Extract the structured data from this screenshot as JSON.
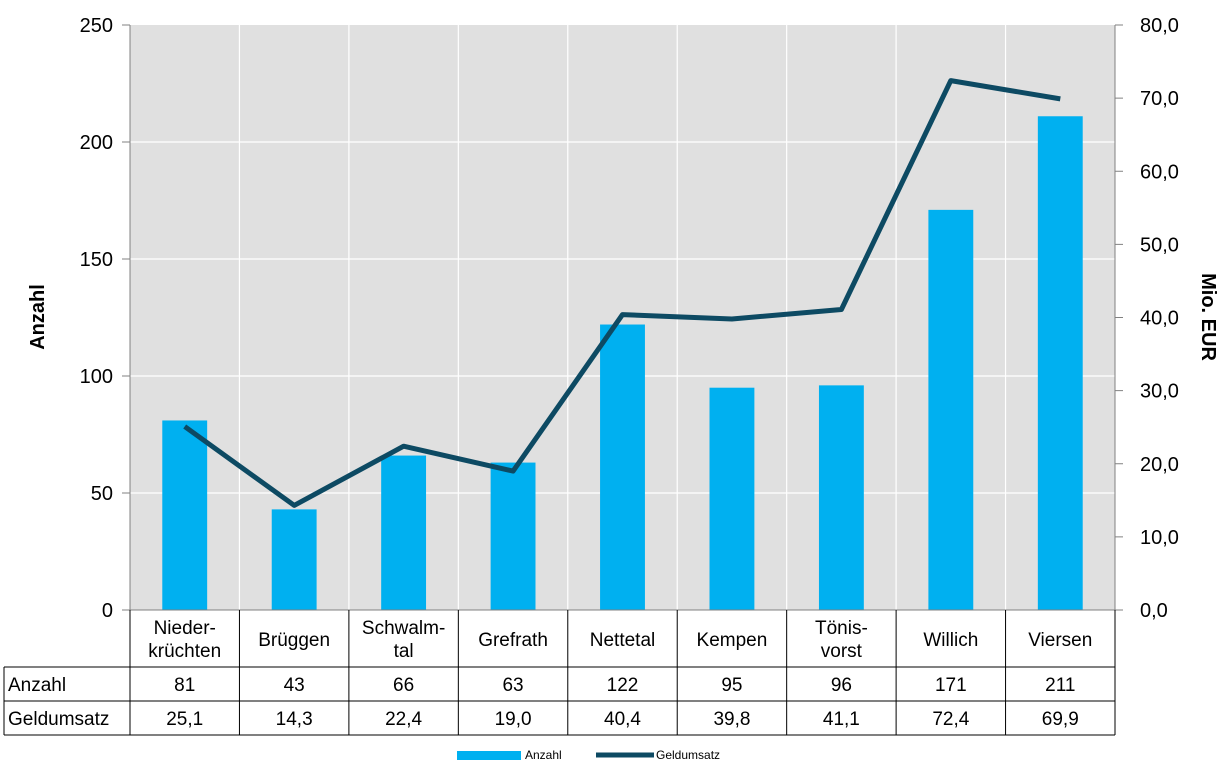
{
  "chart_data": {
    "type": "bar",
    "categories": [
      "Nieder-\nkrüchten",
      "Brüggen",
      "Schwalm-\ntal",
      "Grefrath",
      "Nettetal",
      "Kempen",
      "Tönis-\nvorst",
      "Willich",
      "Viersen"
    ],
    "series": [
      {
        "name": "Anzahl",
        "type": "bar",
        "axis": "left",
        "values": [
          81,
          43,
          66,
          63,
          122,
          95,
          96,
          171,
          211
        ],
        "labels": [
          "81",
          "43",
          "66",
          "63",
          "122",
          "95",
          "96",
          "171",
          "211"
        ],
        "color": "#00B0F0"
      },
      {
        "name": "Geldumsatz",
        "type": "line",
        "axis": "right",
        "values": [
          25.1,
          14.3,
          22.4,
          19.0,
          40.4,
          39.8,
          41.1,
          72.4,
          69.9
        ],
        "labels": [
          "25,1",
          "14,3",
          "22,4",
          "19,0",
          "40,4",
          "39,8",
          "41,1",
          "72,4",
          "69,9"
        ],
        "color": "#0D4A63"
      }
    ],
    "ylabel": "Anzahl",
    "y2label": "Mio. EUR",
    "ylim": [
      0,
      250
    ],
    "y2lim": [
      0,
      80
    ],
    "yticks": [
      "0",
      "50",
      "100",
      "150",
      "200",
      "250"
    ],
    "y2ticks": [
      "0,0",
      "10,0",
      "20,0",
      "30,0",
      "40,0",
      "50,0",
      "60,0",
      "70,0",
      "80,0"
    ],
    "grid": true,
    "plot_background": "#E0E0E0",
    "grid_color": "#FFFFFF",
    "legend": "bottom-center",
    "data_table": true
  }
}
